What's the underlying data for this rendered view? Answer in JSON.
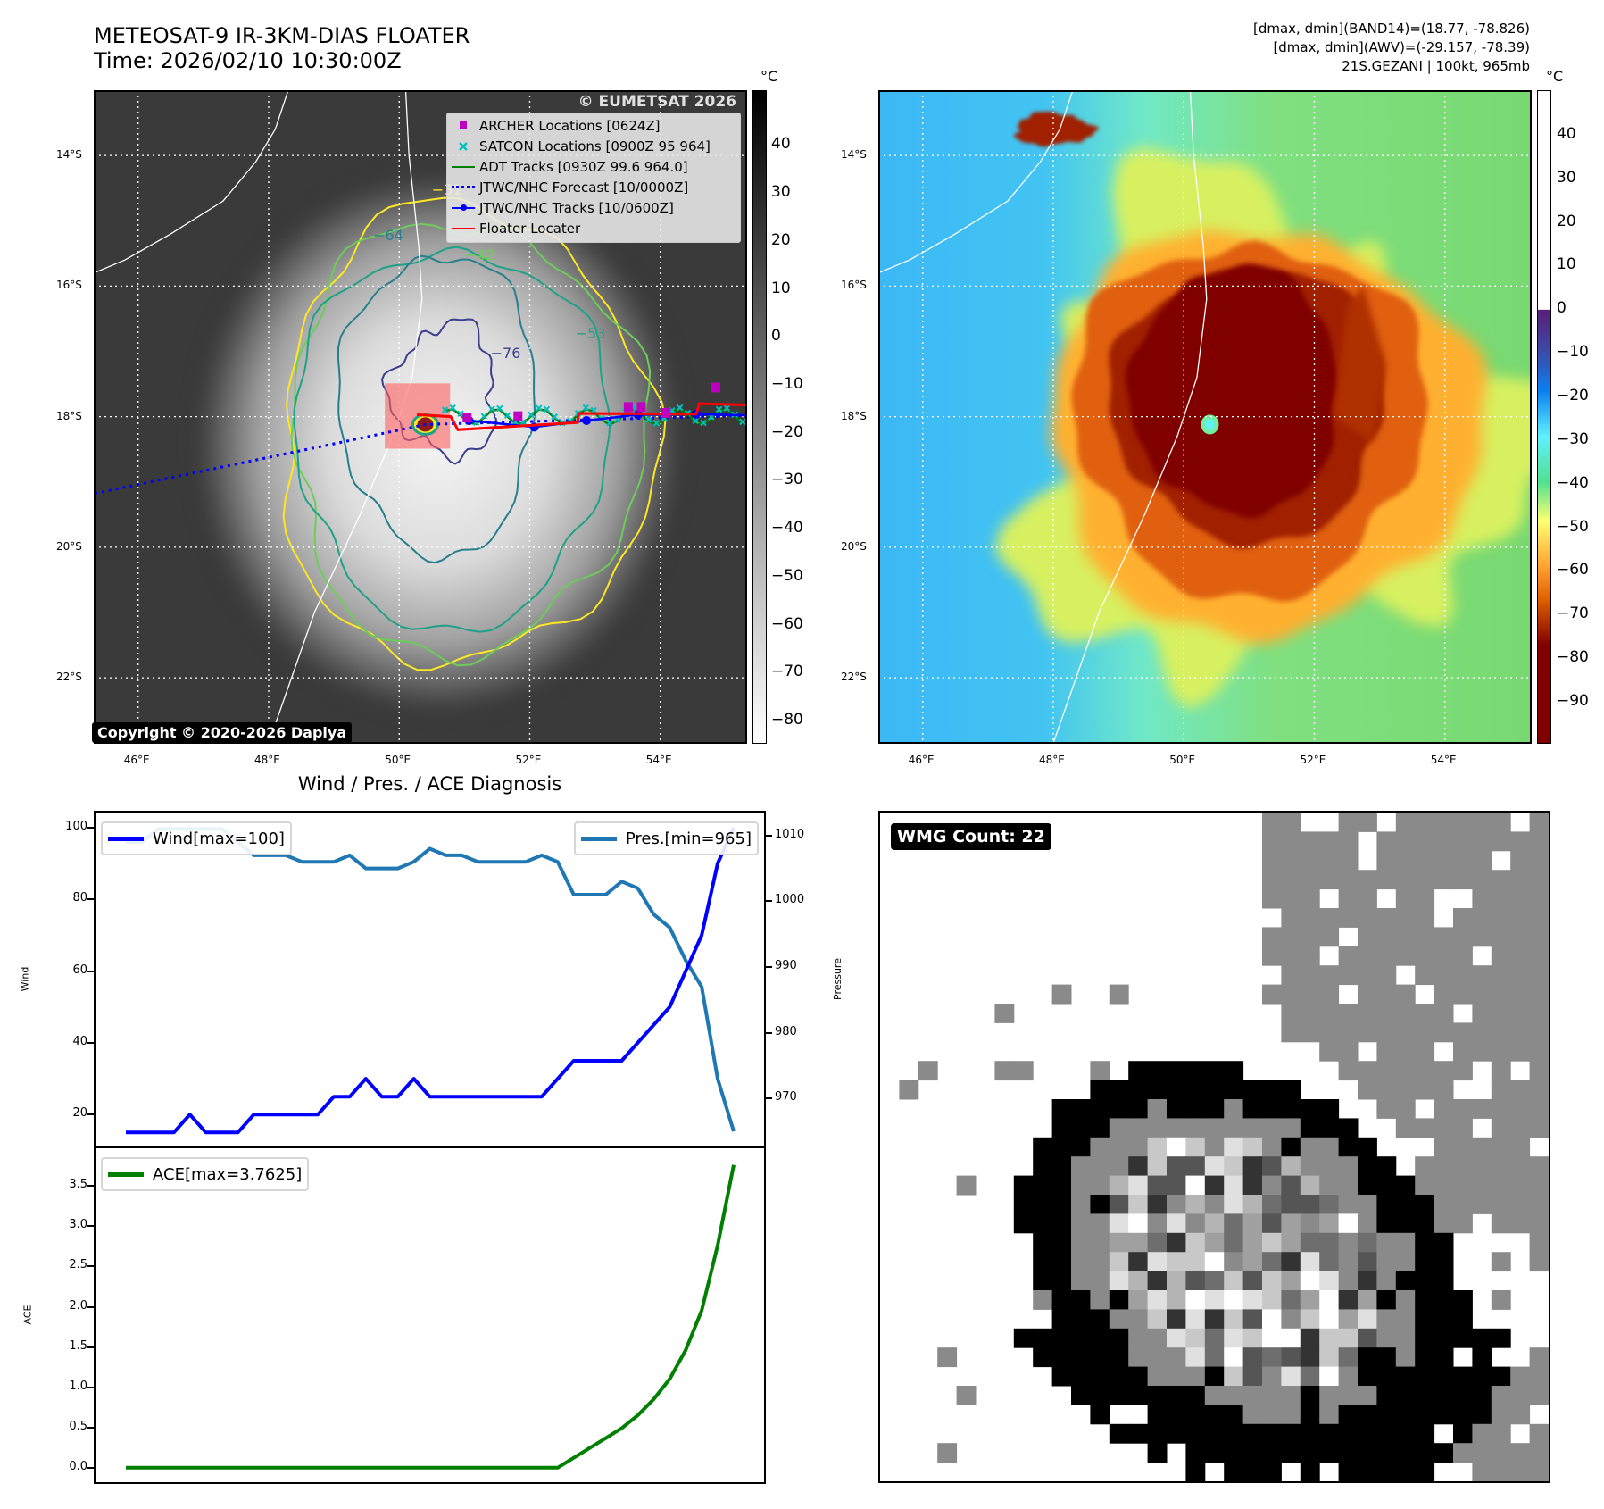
{
  "header": {
    "title_line1": "METEOSAT-9 IR-3KM-DIAS FLOATER",
    "title_line2": "Time: 2026/02/10 10:30:00Z"
  },
  "info": {
    "line1": "[dmax, dmin](BAND14)=(18.77, -78.826)",
    "line2": "[dmax, dmin](AWV)=(-29.157, -78.39)",
    "line3": "21S.GEZANI | 100kt, 965mb"
  },
  "map_axes": {
    "lon_range": [
      45.32,
      55.33
    ],
    "lat_range_south": [
      13.0,
      23.0
    ],
    "lat_ticks": [
      "14°S",
      "16°S",
      "18°S",
      "20°S",
      "22°S"
    ],
    "lat_tick_values": [
      14,
      16,
      18,
      20,
      22
    ],
    "lon_ticks": [
      "46°E",
      "48°E",
      "50°E",
      "52°E",
      "54°E"
    ],
    "lon_tick_values": [
      46,
      48,
      50,
      52,
      54
    ]
  },
  "ir_map": {
    "legend": {
      "archer": "ARCHER Locations [0624Z]",
      "satcon": "SATCON Locations [0900Z 95 964]",
      "adt": "ADT Tracks [0930Z 99.6 964.0]",
      "forecast": "JTWC/NHC Forecast [10/0000Z]",
      "tracks": "JTWC/NHC Tracks [10/0600Z]",
      "floater": "Floater Locater"
    },
    "watermark": "© EUMETSAT 2026",
    "copyright": "Copyright © 2020-2026 Dapiya",
    "contour_labels": [
      "−64",
      "−76",
      "−42",
      "−31",
      "−53"
    ],
    "colorbar": {
      "unit": "°C",
      "range": [
        -84.8,
        51.4
      ],
      "tick_values": [
        40,
        30,
        20,
        10,
        0,
        -10,
        -20,
        -30,
        -40,
        -50,
        -60,
        -70,
        -80
      ],
      "tick_labels": [
        "40",
        "30",
        "20",
        "10",
        "0",
        "−10",
        "−20",
        "−30",
        "−40",
        "−50",
        "−60",
        "−70",
        "−80"
      ]
    },
    "colors": {
      "archer": "#c000c0",
      "satcon": "#00bfbf",
      "adt": "#008000",
      "forecast": "#0000ff",
      "tracks": "#0000ff",
      "floater": "#ff0000"
    },
    "tracks": {
      "jtwc_track": [
        [
          51.07,
          18.06
        ],
        [
          52.07,
          18.16
        ],
        [
          52.87,
          18.06
        ],
        [
          53.66,
          17.97
        ],
        [
          54.55,
          17.96
        ],
        [
          55.33,
          17.98
        ]
      ],
      "jtwc_forecast": [
        [
          55.33,
          17.98
        ],
        [
          50.4,
          18.12
        ],
        [
          49.12,
          18.39
        ],
        [
          45.32,
          19.18
        ]
      ],
      "floater": [
        [
          50.27,
          17.97
        ],
        [
          50.79,
          18.0
        ],
        [
          50.9,
          18.2
        ],
        [
          52.73,
          18.09
        ],
        [
          52.75,
          17.95
        ],
        [
          54.55,
          17.96
        ],
        [
          54.6,
          17.8
        ],
        [
          55.33,
          17.82
        ]
      ],
      "archer": [
        [
          51.04,
          18.02
        ],
        [
          51.82,
          18.0
        ],
        [
          53.51,
          17.86
        ],
        [
          53.71,
          17.86
        ],
        [
          54.09,
          17.95
        ],
        [
          54.85,
          17.56
        ]
      ],
      "floater_box": [
        49.78,
        17.49,
        50.78,
        18.49
      ]
    }
  },
  "awv_map": {
    "colorbar": {
      "unit": "°C",
      "range": [
        -99.6,
        50.2
      ],
      "tick_values": [
        40,
        30,
        20,
        10,
        0,
        -10,
        -20,
        -30,
        -40,
        -50,
        -60,
        -70,
        -80,
        -90
      ],
      "tick_labels": [
        "40",
        "30",
        "20",
        "10",
        "0",
        "−10",
        "−20",
        "−30",
        "−40",
        "−50",
        "−60",
        "−70",
        "−80",
        "−90"
      ]
    }
  },
  "diagnosis": {
    "title": "Wind / Pres. / ACE Diagnosis",
    "wind_legend": "Wind[max=100]",
    "pres_legend": "Pres.[min=965]",
    "ace_legend": "ACE[max=3.7625]",
    "wind_ylabel": "Wind",
    "pres_ylabel": "Pressure",
    "ace_ylabel": "ACE"
  },
  "wmg": {
    "label": "WMG Count: 22"
  },
  "chart_data": [
    {
      "type": "line",
      "title": "Wind / Pres. / ACE Diagnosis",
      "x": [
        0,
        1,
        2,
        3,
        4,
        5,
        6,
        7,
        8,
        9,
        10,
        11,
        12,
        13,
        14,
        15,
        16,
        17,
        18,
        19,
        20,
        21,
        22,
        23,
        24,
        25,
        26,
        27,
        28,
        29,
        30,
        31,
        32,
        33,
        34,
        35,
        36,
        37,
        38
      ],
      "xlim": [
        -1.9,
        39.9
      ],
      "series": [
        {
          "name": "Wind[max=100]",
          "axis": "left",
          "color": "#0000ff",
          "values": [
            15,
            15,
            15,
            15,
            20,
            15,
            15,
            15,
            20,
            20,
            20,
            20,
            20,
            25,
            25,
            30,
            25,
            25,
            30,
            25,
            25,
            25,
            25,
            25,
            25,
            25,
            25,
            30,
            35,
            35,
            35,
            35,
            40,
            45,
            50,
            60,
            70,
            90,
            100
          ]
        },
        {
          "name": "Pres.[min=965]",
          "axis": "right",
          "color": "#1f77b4",
          "values": [
            1009,
            1009,
            1011,
            1011,
            1011,
            1011,
            1011,
            1009,
            1007,
            1007,
            1007,
            1006,
            1006,
            1006,
            1007,
            1005,
            1005,
            1005,
            1006,
            1008,
            1007,
            1007,
            1006,
            1006,
            1006,
            1006,
            1007,
            1006,
            1001,
            1001,
            1001,
            1003,
            1002,
            998,
            996,
            991,
            987,
            973,
            965
          ]
        }
      ],
      "ylabel": "Wind",
      "ylim": [
        11.1,
        104.2
      ],
      "yticks": [
        20,
        40,
        60,
        80,
        100
      ],
      "y2label": "Pressure",
      "y2lim": [
        962.7,
        1013.5
      ],
      "y2ticks": [
        970,
        980,
        990,
        1000,
        1010
      ],
      "legend": [
        "upper-left",
        "upper-right"
      ]
    },
    {
      "type": "line",
      "x": [
        0,
        1,
        2,
        3,
        4,
        5,
        6,
        7,
        8,
        9,
        10,
        11,
        12,
        13,
        14,
        15,
        16,
        17,
        18,
        19,
        20,
        21,
        22,
        23,
        24,
        25,
        26,
        27,
        28,
        29,
        30,
        31,
        32,
        33,
        34,
        35,
        36,
        37,
        38
      ],
      "xlim": [
        -1.9,
        39.9
      ],
      "series": [
        {
          "name": "ACE[max=3.7625]",
          "color": "#008000",
          "values": [
            0,
            0,
            0,
            0,
            0,
            0,
            0,
            0,
            0,
            0,
            0,
            0,
            0,
            0,
            0,
            0,
            0,
            0,
            0,
            0,
            0,
            0,
            0,
            0,
            0,
            0,
            0,
            0,
            0.1225,
            0.245,
            0.3675,
            0.49,
            0.65,
            0.8525,
            1.1025,
            1.4625,
            1.9525,
            2.7625,
            3.7625
          ]
        }
      ],
      "ylabel": "ACE",
      "ylim": [
        -0.18,
        3.97
      ],
      "yticks": [
        0.0,
        0.5,
        1.0,
        1.5,
        2.0,
        2.5,
        3.0,
        3.5
      ],
      "ytick_labels": [
        "0.0",
        "0.5",
        "1.0",
        "1.5",
        "2.0",
        "2.5",
        "3.0",
        "3.5"
      ],
      "legend": "upper-left"
    }
  ]
}
